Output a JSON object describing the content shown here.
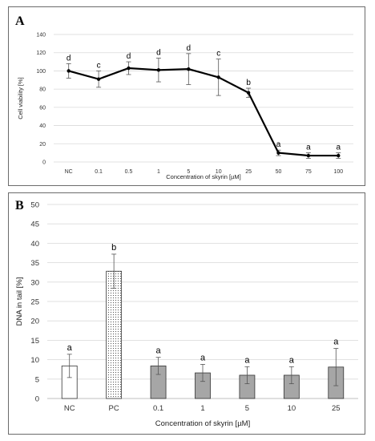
{
  "chart_data": [
    {
      "panel": "A",
      "type": "line",
      "categories": [
        "NC",
        "0.1",
        "0.5",
        "1",
        "5",
        "10",
        "25",
        "50",
        "75",
        "100"
      ],
      "values": [
        100,
        91,
        103,
        101,
        102,
        93,
        76,
        10,
        7,
        7
      ],
      "errors": [
        8,
        9,
        7,
        13,
        17,
        20,
        5,
        3,
        3,
        3
      ],
      "letters": [
        "d",
        "c",
        "d",
        "d",
        "d",
        "c",
        "b",
        "a",
        "a",
        "a"
      ],
      "xlabel": "Concentration of skyrin [µM]",
      "ylabel": "Cell viability [%]",
      "ylim": [
        0,
        140
      ],
      "yticks": [
        0,
        20,
        40,
        60,
        80,
        100,
        120,
        140
      ],
      "grid": true,
      "color": "#000000"
    },
    {
      "panel": "B",
      "type": "bar",
      "categories": [
        "NC",
        "PC",
        "0.1",
        "1",
        "5",
        "10",
        "25"
      ],
      "values": [
        8.4,
        32.8,
        8.4,
        6.6,
        6.0,
        6.0,
        8.1
      ],
      "errors": [
        3.0,
        4.4,
        2.2,
        2.2,
        2.2,
        2.2,
        4.8
      ],
      "letters": [
        "a",
        "b",
        "a",
        "a",
        "a",
        "a",
        "a"
      ],
      "bar_styles": [
        "white",
        "dotted",
        "gray",
        "gray",
        "gray",
        "gray",
        "gray"
      ],
      "xlabel": "Concentration of skyrin [µM]",
      "ylabel": "DNA in tail [%]",
      "ylim": [
        0,
        50
      ],
      "yticks": [
        0,
        5,
        10,
        15,
        20,
        25,
        30,
        35,
        40,
        45,
        50
      ],
      "grid": true,
      "colors": {
        "gray": "#a6a6a6",
        "white": "#ffffff",
        "dotted": "#ffffff"
      }
    }
  ],
  "panels": {
    "a_label": "A",
    "b_label": "B"
  }
}
